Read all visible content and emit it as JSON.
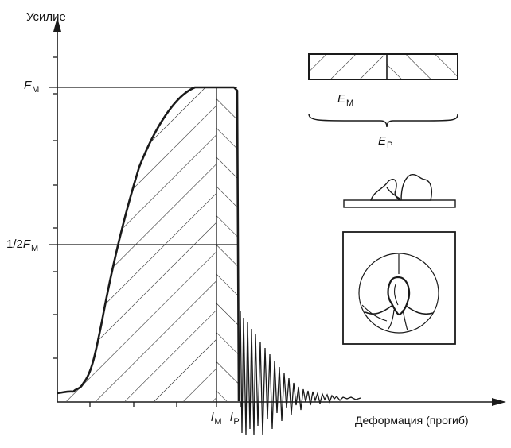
{
  "axes": {
    "y_label": "Усилие",
    "x_label": "Деформация (прогиб)"
  },
  "y_marks": {
    "fm": {
      "letter": "F",
      "sub": "M"
    },
    "half_fm": {
      "prefix": "1/2",
      "letter": "F",
      "sub": "M"
    }
  },
  "x_marks": {
    "lm": {
      "letter": "l",
      "sub": "M"
    },
    "lp": {
      "letter": "l",
      "sub": "P"
    }
  },
  "energy_bar": {
    "em": {
      "letter": "E",
      "sub": "M"
    },
    "ep": {
      "letter": "E",
      "sub": "P"
    }
  },
  "colors": {
    "ink": "#1a1a1a",
    "paper": "#ffffff"
  }
}
